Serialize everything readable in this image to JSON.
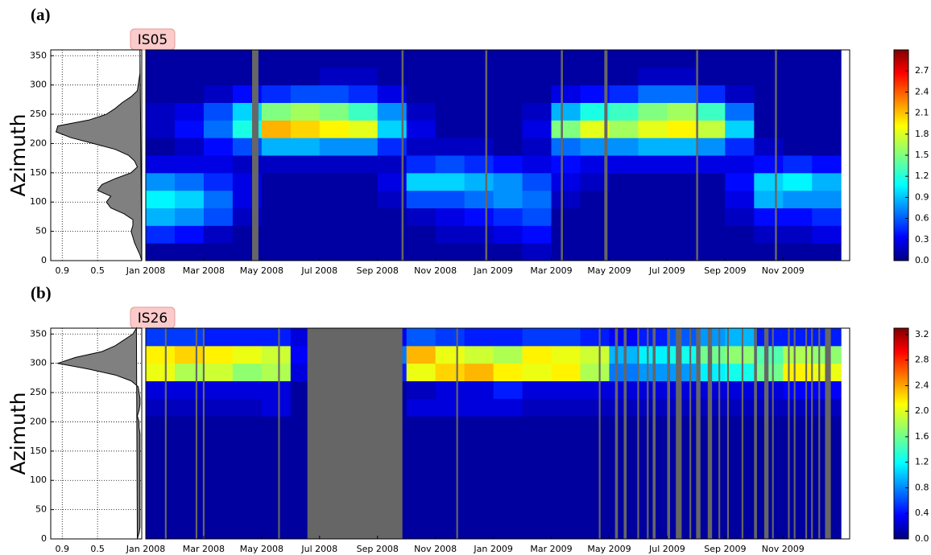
{
  "chart_data": [
    {
      "type": "heatmap",
      "panel_label": "(a)",
      "station": "IS05",
      "y_label": "Azimuth",
      "xbins": [
        0,
        1,
        2,
        3,
        4,
        5,
        6,
        7,
        8,
        9,
        10,
        11,
        12,
        13,
        14,
        15,
        16,
        17,
        18,
        19,
        20,
        21,
        22,
        23,
        24
      ],
      "ybins": [
        0,
        30,
        60,
        90,
        120,
        150,
        180,
        210,
        240,
        270,
        300,
        330,
        360
      ],
      "xlim": [
        0,
        24.3
      ],
      "xticks": [
        {
          "value": 0,
          "label": "Jan 2008"
        },
        {
          "value": 2,
          "label": "Mar 2008"
        },
        {
          "value": 4,
          "label": "May 2008"
        },
        {
          "value": 6,
          "label": "Jul 2008"
        },
        {
          "value": 8,
          "label": "Sep 2008"
        },
        {
          "value": 10,
          "label": "Nov 2008"
        },
        {
          "value": 12,
          "label": "Jan 2009"
        },
        {
          "value": 14,
          "label": "Mar 2009"
        },
        {
          "value": 16,
          "label": "May 2009"
        },
        {
          "value": 18,
          "label": "Jul 2009"
        },
        {
          "value": 20,
          "label": "Sep 2009"
        },
        {
          "value": 22,
          "label": "Nov 2009"
        }
      ],
      "ylim": [
        0,
        360
      ],
      "yticks": [
        0,
        50,
        100,
        150,
        200,
        250,
        300,
        350
      ],
      "zlim": [
        0,
        3.0
      ],
      "zticks": [
        {
          "value": 0,
          "label": "0.0"
        },
        0.3,
        0.6,
        0.9,
        1.2,
        1.5,
        1.8,
        2.1,
        2.4,
        2.7
      ],
      "z": [
        [
          0.1,
          0.5,
          0.9,
          1.1,
          0.8,
          0.3,
          0.1,
          0.2,
          0.2,
          0.1,
          0.1,
          0.1
        ],
        [
          0.1,
          0.4,
          0.8,
          1.0,
          0.7,
          0.3,
          0.2,
          0.4,
          0.3,
          0.1,
          0.1,
          0.1
        ],
        [
          0.1,
          0.2,
          0.6,
          0.7,
          0.5,
          0.3,
          0.4,
          0.7,
          0.6,
          0.2,
          0.1,
          0.1
        ],
        [
          0.1,
          0.1,
          0.2,
          0.3,
          0.3,
          0.2,
          0.6,
          1.2,
          1.0,
          0.4,
          0.1,
          0.1
        ],
        [
          0.1,
          0.1,
          0.1,
          0.1,
          0.1,
          0.2,
          0.9,
          2.1,
          1.5,
          0.5,
          0.1,
          0.1
        ],
        [
          0.1,
          0.1,
          0.1,
          0.1,
          0.1,
          0.2,
          0.9,
          2.0,
          1.6,
          0.6,
          0.1,
          0.1
        ],
        [
          0.1,
          0.1,
          0.1,
          0.1,
          0.1,
          0.2,
          0.8,
          1.9,
          1.5,
          0.6,
          0.2,
          0.1
        ],
        [
          0.1,
          0.1,
          0.1,
          0.1,
          0.1,
          0.2,
          0.8,
          1.8,
          1.3,
          0.5,
          0.2,
          0.1
        ],
        [
          0.1,
          0.1,
          0.1,
          0.2,
          0.3,
          0.2,
          0.5,
          1.0,
          0.8,
          0.3,
          0.1,
          0.1
        ],
        [
          0.1,
          0.1,
          0.2,
          0.6,
          1.0,
          0.5,
          0.2,
          0.3,
          0.2,
          0.1,
          0.1,
          0.1
        ],
        [
          0.1,
          0.2,
          0.3,
          0.6,
          1.0,
          0.6,
          0.2,
          0.1,
          0.1,
          0.1,
          0.1,
          0.1
        ],
        [
          0.1,
          0.2,
          0.4,
          0.7,
          0.9,
          0.5,
          0.2,
          0.1,
          0.1,
          0.1,
          0.1,
          0.1
        ],
        [
          0.1,
          0.3,
          0.5,
          0.8,
          0.8,
          0.4,
          0.1,
          0.1,
          0.1,
          0.1,
          0.1,
          0.1
        ],
        [
          0.2,
          0.4,
          0.6,
          0.7,
          0.6,
          0.3,
          0.2,
          0.3,
          0.2,
          0.1,
          0.1,
          0.1
        ],
        [
          0.1,
          0.1,
          0.1,
          0.2,
          0.3,
          0.4,
          0.7,
          1.5,
          0.9,
          0.3,
          0.1,
          0.1
        ],
        [
          0.1,
          0.1,
          0.1,
          0.1,
          0.2,
          0.3,
          0.8,
          1.8,
          1.2,
          0.4,
          0.1,
          0.1
        ],
        [
          0.1,
          0.1,
          0.1,
          0.1,
          0.1,
          0.3,
          0.8,
          1.6,
          1.3,
          0.5,
          0.1,
          0.1
        ],
        [
          0.1,
          0.1,
          0.1,
          0.1,
          0.1,
          0.3,
          0.9,
          1.8,
          1.5,
          0.7,
          0.2,
          0.1
        ],
        [
          0.1,
          0.1,
          0.1,
          0.1,
          0.1,
          0.3,
          0.9,
          1.9,
          1.6,
          0.7,
          0.2,
          0.1
        ],
        [
          0.1,
          0.1,
          0.1,
          0.1,
          0.1,
          0.3,
          0.8,
          1.7,
          1.3,
          0.5,
          0.1,
          0.1
        ],
        [
          0.1,
          0.1,
          0.2,
          0.3,
          0.4,
          0.3,
          0.5,
          1.0,
          0.7,
          0.2,
          0.1,
          0.1
        ],
        [
          0.1,
          0.2,
          0.4,
          0.9,
          1.0,
          0.4,
          0.2,
          0.1,
          0.1,
          0.1,
          0.1,
          0.1
        ],
        [
          0.1,
          0.2,
          0.4,
          0.8,
          1.1,
          0.5,
          0.1,
          0.1,
          0.1,
          0.1,
          0.1,
          0.1
        ],
        [
          0.1,
          0.3,
          0.5,
          0.8,
          0.9,
          0.4,
          0.1,
          0.1,
          0.1,
          0.1,
          0.1,
          0.1
        ]
      ],
      "gaps": [
        [
          3.67,
          3.89
        ],
        [
          8.83,
          8.9
        ],
        [
          11.72,
          11.79
        ],
        [
          14.33,
          14.4
        ],
        [
          15.83,
          15.94
        ],
        [
          19.0,
          19.07
        ],
        [
          21.72,
          21.79
        ]
      ],
      "density": {
        "xlim": [
          1.03,
          0
        ],
        "xticks": [
          0.9,
          0.5
        ],
        "azimuth": [
          0,
          10,
          20,
          30,
          40,
          50,
          60,
          70,
          80,
          90,
          100,
          110,
          120,
          130,
          140,
          150,
          160,
          170,
          180,
          190,
          200,
          210,
          220,
          230,
          240,
          250,
          260,
          270,
          280,
          290,
          300,
          310,
          320,
          330,
          340,
          350,
          360
        ],
        "values": [
          0,
          0.02,
          0.05,
          0.08,
          0.1,
          0.12,
          0.1,
          0.1,
          0.2,
          0.35,
          0.4,
          0.35,
          0.5,
          0.45,
          0.3,
          0.12,
          0.05,
          0.08,
          0.15,
          0.3,
          0.55,
          0.8,
          0.97,
          0.95,
          0.6,
          0.4,
          0.3,
          0.22,
          0.12,
          0.05,
          0.04,
          0.03,
          0.02,
          0.02,
          0.02,
          0.02,
          0.02
        ]
      }
    },
    {
      "type": "heatmap",
      "panel_label": "(b)",
      "station": "IS26",
      "y_label": "Azimuth",
      "xbins": [
        0,
        1,
        2,
        3,
        4,
        5,
        6,
        7,
        8,
        9,
        10,
        11,
        12,
        13,
        14,
        15,
        16,
        17,
        18,
        19,
        20,
        21,
        22,
        23,
        24
      ],
      "ybins": [
        0,
        30,
        60,
        90,
        120,
        150,
        180,
        210,
        240,
        270,
        300,
        330,
        360
      ],
      "xlim": [
        0,
        24.3
      ],
      "xticks": [
        {
          "value": 0,
          "label": "Jan 2008"
        },
        {
          "value": 2,
          "label": "Mar 2008"
        },
        {
          "value": 4,
          "label": "May 2008"
        },
        {
          "value": 6,
          "label": "Jul 2008"
        },
        {
          "value": 8,
          "label": "Sep 2008"
        },
        {
          "value": 10,
          "label": "Nov 2008"
        },
        {
          "value": 12,
          "label": "Jan 2009"
        },
        {
          "value": 14,
          "label": "Mar 2009"
        },
        {
          "value": 16,
          "label": "May 2009"
        },
        {
          "value": 18,
          "label": "Jul 2009"
        },
        {
          "value": 20,
          "label": "Sep 2009"
        },
        {
          "value": 22,
          "label": "Nov 2009"
        }
      ],
      "ylim": [
        0,
        360
      ],
      "yticks": [
        0,
        50,
        100,
        150,
        200,
        250,
        300,
        350
      ],
      "zlim": [
        0,
        3.3
      ],
      "zticks": [
        {
          "value": 0,
          "label": "0.0"
        },
        0.4,
        0.8,
        1.2,
        1.6,
        {
          "value": 2,
          "label": "2.0"
        },
        2.4,
        2.8,
        3.2
      ],
      "z": [
        [
          0.1,
          0.1,
          0.1,
          0.1,
          0.1,
          0.1,
          0.1,
          0.2,
          0.3,
          2.0,
          2.1,
          0.6
        ],
        [
          0.1,
          0.1,
          0.1,
          0.1,
          0.1,
          0.1,
          0.1,
          0.2,
          0.3,
          1.8,
          2.2,
          0.6
        ],
        [
          0.1,
          0.1,
          0.1,
          0.1,
          0.1,
          0.1,
          0.1,
          0.2,
          0.3,
          1.9,
          2.1,
          0.5
        ],
        [
          0.1,
          0.1,
          0.1,
          0.1,
          0.1,
          0.1,
          0.1,
          0.2,
          0.3,
          1.7,
          2.0,
          0.5
        ],
        [
          0.1,
          0.1,
          0.1,
          0.1,
          0.1,
          0.1,
          0.1,
          0.3,
          0.3,
          1.8,
          1.9,
          0.5
        ],
        [
          0.1,
          0.1,
          0.1,
          0.1,
          0.1,
          0.1,
          0.1,
          0.1,
          0.1,
          0.3,
          0.4,
          0.3
        ],
        [
          0.1,
          0.1,
          0.1,
          0.1,
          0.1,
          0.1,
          0.1,
          0.1,
          0.1,
          0.1,
          0.1,
          0.1
        ],
        [
          0.1,
          0.1,
          0.1,
          0.1,
          0.1,
          0.1,
          0.1,
          0.1,
          0.1,
          0.1,
          0.1,
          0.1
        ],
        [
          0.1,
          0.1,
          0.1,
          0.1,
          0.1,
          0.1,
          0.1,
          0.1,
          0.1,
          0.5,
          0.8,
          0.4
        ],
        [
          0.1,
          0.1,
          0.1,
          0.1,
          0.1,
          0.1,
          0.1,
          0.3,
          0.2,
          2.0,
          2.3,
          0.7
        ],
        [
          0.1,
          0.1,
          0.1,
          0.1,
          0.1,
          0.1,
          0.1,
          0.3,
          0.3,
          2.2,
          2.0,
          0.6
        ],
        [
          0.1,
          0.1,
          0.1,
          0.1,
          0.1,
          0.1,
          0.1,
          0.3,
          0.3,
          2.3,
          1.9,
          0.5
        ],
        [
          0.1,
          0.1,
          0.1,
          0.1,
          0.1,
          0.1,
          0.1,
          0.3,
          0.5,
          2.1,
          1.8,
          0.5
        ],
        [
          0.1,
          0.1,
          0.1,
          0.1,
          0.1,
          0.1,
          0.1,
          0.2,
          0.3,
          2.0,
          2.1,
          0.6
        ],
        [
          0.1,
          0.1,
          0.1,
          0.1,
          0.1,
          0.1,
          0.1,
          0.2,
          0.3,
          2.1,
          2.0,
          0.6
        ],
        [
          0.1,
          0.1,
          0.1,
          0.1,
          0.1,
          0.1,
          0.1,
          0.2,
          0.3,
          1.8,
          1.9,
          0.5
        ],
        [
          0.1,
          0.1,
          0.1,
          0.1,
          0.1,
          0.1,
          0.1,
          0.2,
          0.3,
          0.8,
          1.0,
          0.4
        ],
        [
          0.1,
          0.1,
          0.1,
          0.1,
          0.1,
          0.1,
          0.1,
          0.2,
          0.3,
          0.9,
          1.2,
          0.5
        ],
        [
          0.1,
          0.1,
          0.1,
          0.1,
          0.1,
          0.1,
          0.1,
          0.2,
          0.3,
          0.9,
          1.3,
          0.7
        ],
        [
          0.1,
          0.1,
          0.1,
          0.1,
          0.1,
          0.1,
          0.1,
          0.2,
          0.3,
          1.2,
          1.6,
          0.9
        ],
        [
          0.1,
          0.1,
          0.1,
          0.1,
          0.1,
          0.1,
          0.1,
          0.2,
          0.3,
          1.3,
          1.7,
          1.0
        ],
        [
          0.1,
          0.1,
          0.1,
          0.1,
          0.1,
          0.1,
          0.1,
          0.2,
          0.3,
          1.6,
          1.5,
          0.5
        ],
        [
          0.1,
          0.1,
          0.1,
          0.1,
          0.1,
          0.1,
          0.1,
          0.2,
          0.4,
          2.1,
          1.8,
          0.5
        ],
        [
          0.1,
          0.1,
          0.1,
          0.1,
          0.1,
          0.1,
          0.1,
          0.2,
          0.4,
          2.0,
          1.7,
          0.5
        ]
      ],
      "gaps": [
        [
          0.66,
          0.72
        ],
        [
          1.72,
          1.78
        ],
        [
          1.97,
          2.03
        ],
        [
          4.57,
          4.63
        ],
        [
          5.58,
          8.86
        ],
        [
          10.72,
          10.78
        ],
        [
          15.64,
          15.7
        ],
        [
          16.2,
          16.3
        ],
        [
          16.5,
          16.6
        ],
        [
          16.97,
          17.03
        ],
        [
          17.3,
          17.36
        ],
        [
          17.5,
          17.6
        ],
        [
          18.0,
          18.1
        ],
        [
          18.3,
          18.5
        ],
        [
          18.77,
          18.83
        ],
        [
          19.0,
          19.15
        ],
        [
          19.4,
          19.55
        ],
        [
          19.77,
          19.83
        ],
        [
          20.07,
          20.13
        ],
        [
          20.57,
          20.63
        ],
        [
          21.0,
          21.1
        ],
        [
          21.35,
          21.5
        ],
        [
          21.62,
          21.68
        ],
        [
          22.17,
          22.23
        ],
        [
          22.37,
          22.43
        ],
        [
          22.77,
          22.83
        ],
        [
          22.97,
          23.03
        ],
        [
          23.22,
          23.28
        ],
        [
          23.45,
          23.65
        ]
      ],
      "density": {
        "xlim": [
          1.03,
          0
        ],
        "xticks": [
          0.9,
          0.5
        ],
        "azimuth": [
          0,
          10,
          20,
          30,
          40,
          50,
          60,
          70,
          80,
          90,
          100,
          110,
          120,
          130,
          140,
          150,
          160,
          170,
          180,
          190,
          200,
          210,
          220,
          230,
          240,
          250,
          260,
          270,
          280,
          290,
          300,
          310,
          320,
          330,
          340,
          350,
          360
        ],
        "values": [
          0.05,
          0.03,
          0.02,
          0.02,
          0.02,
          0.02,
          0.02,
          0.02,
          0.02,
          0.02,
          0.02,
          0.02,
          0.02,
          0.02,
          0.02,
          0.02,
          0.02,
          0.02,
          0.02,
          0.03,
          0.03,
          0.05,
          0.03,
          0.02,
          0.02,
          0.03,
          0.04,
          0.12,
          0.3,
          0.6,
          0.95,
          0.75,
          0.45,
          0.3,
          0.2,
          0.1,
          0.06
        ]
      }
    }
  ]
}
